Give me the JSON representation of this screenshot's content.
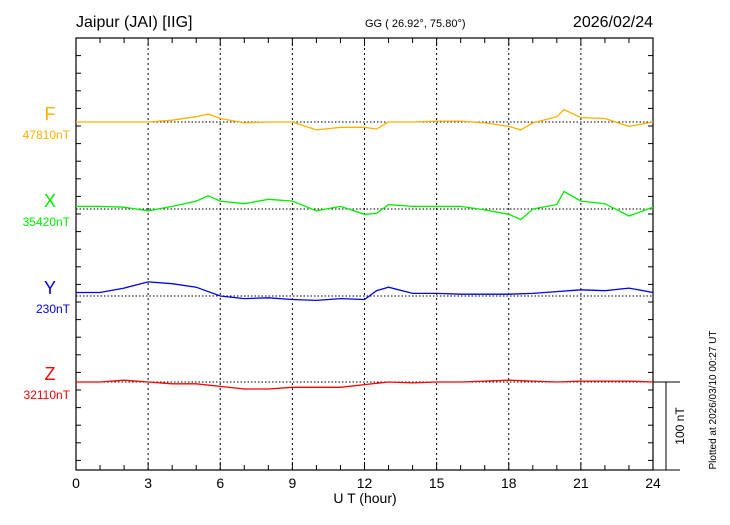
{
  "chart_data": {
    "type": "line",
    "title": "Jaipur (JAI)  [IIG]",
    "coords": "GG ( 26.92°,  75.80°)",
    "date": "2026/02/24",
    "xlabel": "U T (hour)",
    "xlim": [
      0,
      24
    ],
    "xticks": [
      "0",
      "3",
      "6",
      "9",
      "12",
      "15",
      "18",
      "21",
      "24"
    ],
    "scale_label": "100 nT",
    "scale_nT": 100,
    "plotted_note": "Plotted at 2026/03/10 00:27 UT",
    "grid": true,
    "series": [
      {
        "name": "F",
        "baseline_label": "47810nT",
        "color": "#ffb000",
        "x": [
          0,
          1,
          2,
          3,
          4,
          5,
          5.5,
          6,
          7,
          8,
          9,
          10,
          11,
          12,
          12.5,
          13,
          14,
          15,
          16,
          17,
          18,
          18.5,
          19,
          20,
          20.3,
          21,
          22,
          23,
          24
        ],
        "y": [
          0,
          0,
          0,
          0,
          2,
          6,
          9,
          4,
          -1,
          0,
          0,
          -9,
          -6,
          -6,
          -8,
          0,
          0,
          1,
          1,
          -1,
          -5,
          -9,
          -1,
          6,
          14,
          5,
          4,
          -5,
          0
        ]
      },
      {
        "name": "X",
        "baseline_label": "35420nT",
        "color": "#00ee00",
        "x": [
          0,
          1,
          2,
          3,
          4,
          5,
          5.5,
          6,
          7,
          8,
          9,
          10,
          11,
          12,
          12.5,
          13,
          14,
          15,
          16,
          17,
          18,
          18.5,
          19,
          20,
          20.3,
          21,
          22,
          23,
          24
        ],
        "y": [
          3,
          3,
          2,
          -2,
          3,
          9,
          15,
          9,
          6,
          11,
          9,
          -2,
          3,
          -6,
          -5,
          5,
          3,
          3,
          3,
          -1,
          -6,
          -12,
          0,
          5,
          20,
          9,
          6,
          -8,
          2
        ]
      },
      {
        "name": "Y",
        "baseline_label": "230nT",
        "color": "#0000ee",
        "x": [
          0,
          1,
          2,
          3,
          4,
          5,
          6,
          7,
          8,
          9,
          10,
          11,
          12,
          12.5,
          13,
          14,
          15,
          16,
          17,
          18,
          19,
          20,
          21,
          22,
          23,
          24
        ],
        "y": [
          4,
          4,
          9,
          16,
          14,
          10,
          0,
          -3,
          -2,
          -4,
          -5,
          -3,
          -4,
          6,
          10,
          3,
          3,
          2,
          2,
          2,
          3,
          5,
          7,
          6,
          9,
          4
        ]
      },
      {
        "name": "Z",
        "baseline_label": "32110nT",
        "color": "#ff0000",
        "x": [
          0,
          1,
          2,
          3,
          4,
          5,
          6,
          7,
          8,
          9,
          10,
          11,
          12,
          13,
          14,
          15,
          16,
          17,
          18,
          19,
          20,
          21,
          22,
          23,
          24
        ],
        "y": [
          0,
          0,
          2,
          0,
          -2,
          -2,
          -5,
          -8,
          -8,
          -6,
          -6,
          -6,
          -3,
          0,
          -1,
          0,
          0,
          1,
          2,
          1,
          0,
          1,
          1,
          1,
          0
        ]
      }
    ]
  }
}
